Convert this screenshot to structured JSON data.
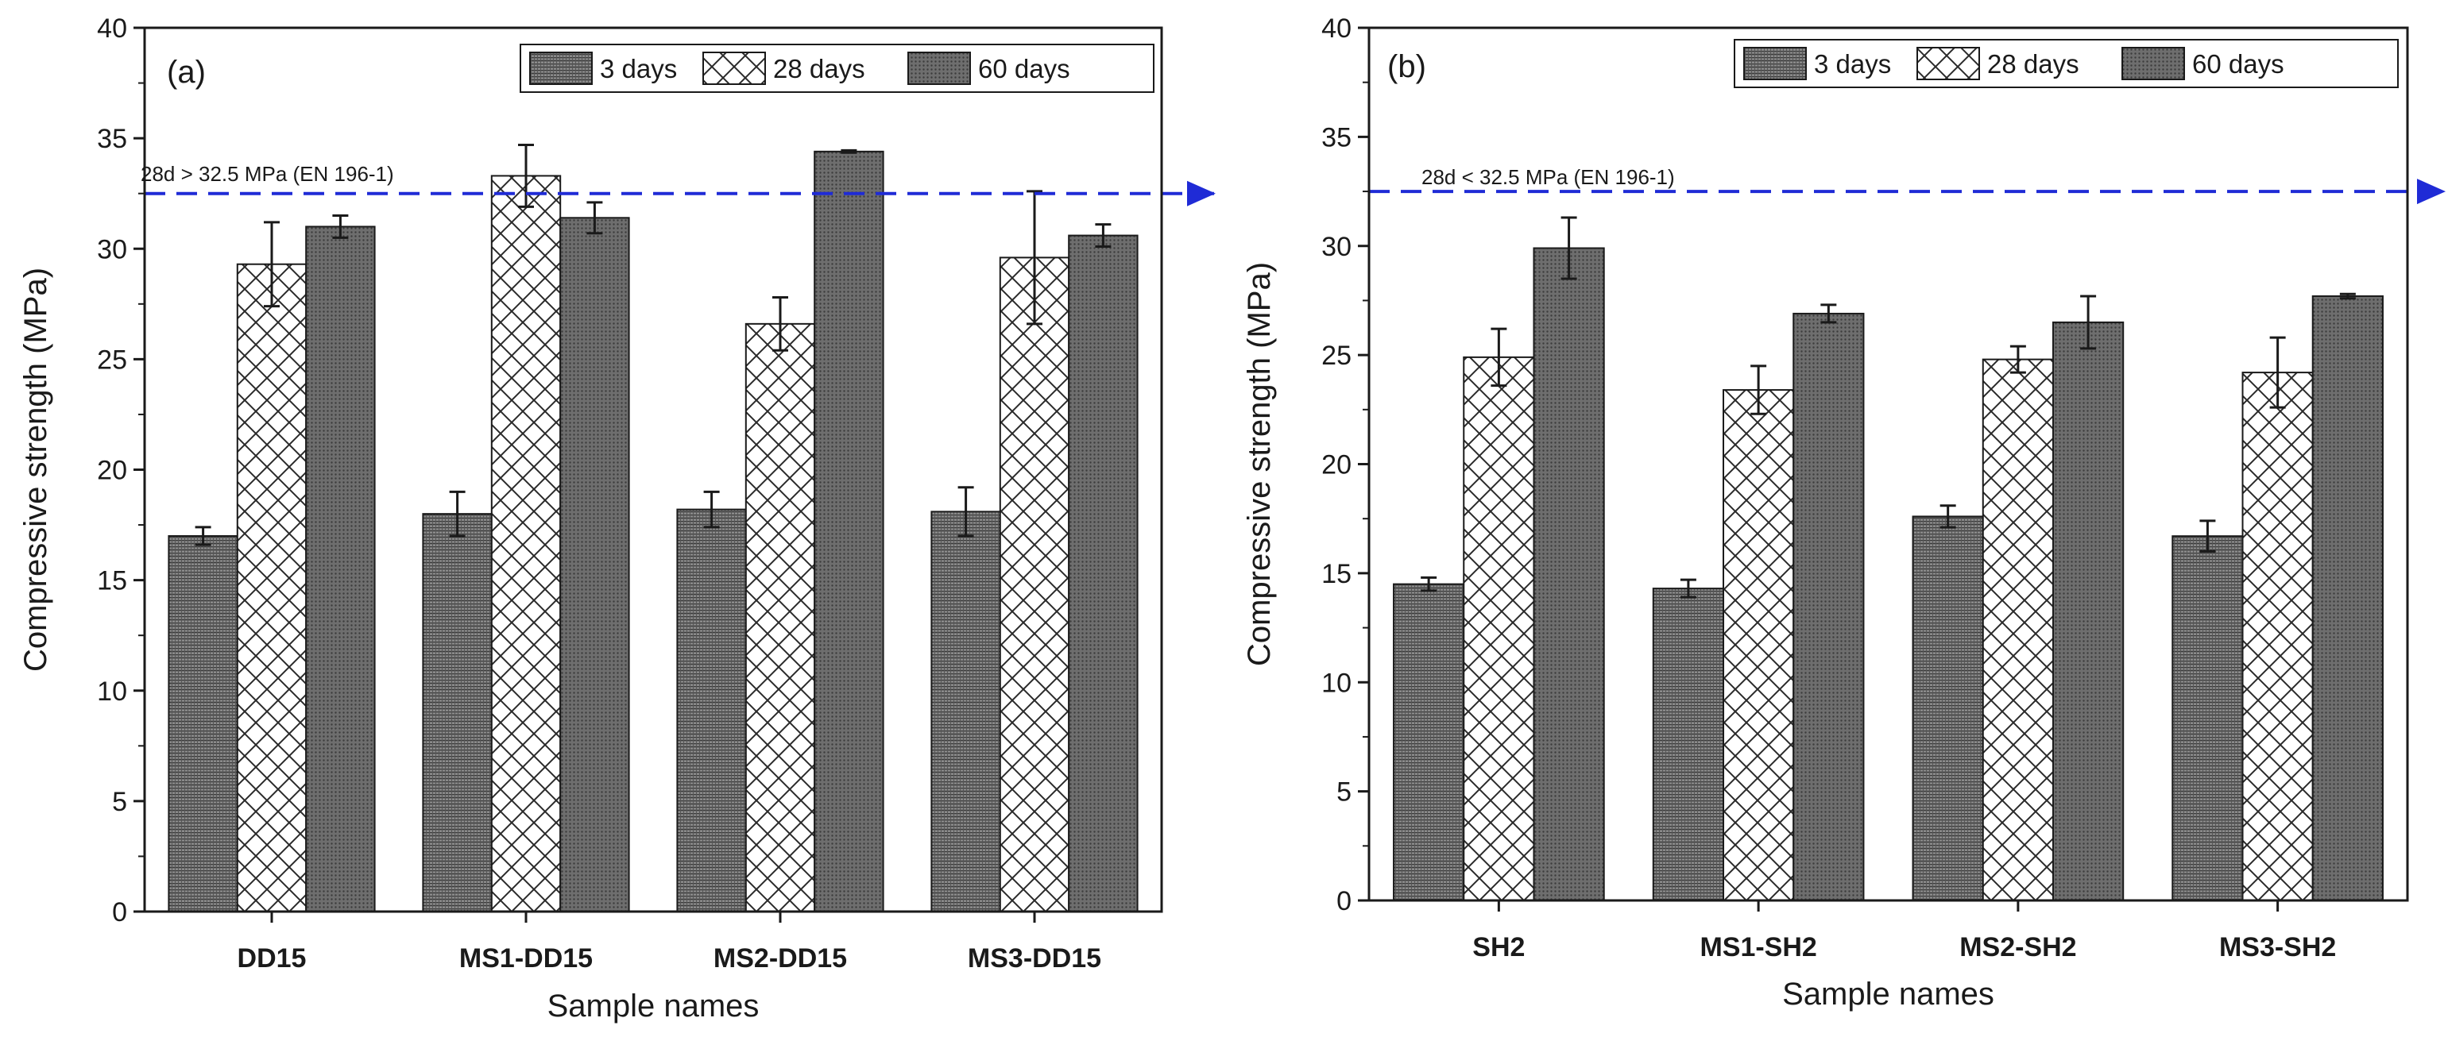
{
  "chart_data": [
    {
      "type": "bar",
      "panel_label": "(a)",
      "categories": [
        "DD15",
        "MS1-DD15",
        "MS2-DD15",
        "MS3-DD15"
      ],
      "series": [
        {
          "name": "3 days",
          "values": [
            17.0,
            18.0,
            18.2,
            18.1
          ],
          "errors": [
            0.4,
            1.0,
            0.8,
            1.1
          ],
          "pattern": "grid"
        },
        {
          "name": "28 days",
          "values": [
            29.3,
            33.3,
            26.6,
            29.6
          ],
          "errors": [
            1.9,
            1.4,
            1.2,
            3.0
          ],
          "pattern": "cross"
        },
        {
          "name": "60 days",
          "values": [
            31.0,
            31.4,
            34.4,
            30.6
          ],
          "errors": [
            0.5,
            0.7,
            0.05,
            0.5
          ],
          "pattern": "dense"
        }
      ],
      "ylim": [
        0,
        40
      ],
      "yticks": [
        0,
        5,
        10,
        15,
        20,
        25,
        30,
        35,
        40
      ],
      "xlabel": "Sample names",
      "ylabel": "Compressive strength (MPa)",
      "legend_position": "top-right",
      "reference_line": {
        "value": 32.5,
        "label": "28d > 32.5 MPa (EN 196-1)",
        "color": "#1f2bd6"
      }
    },
    {
      "type": "bar",
      "panel_label": "(b)",
      "categories": [
        "SH2",
        "MS1-SH2",
        "MS2-SH2",
        "MS3-SH2"
      ],
      "series": [
        {
          "name": "3 days",
          "values": [
            14.5,
            14.3,
            17.6,
            16.7
          ],
          "errors": [
            0.3,
            0.4,
            0.5,
            0.7
          ],
          "pattern": "grid"
        },
        {
          "name": "28 days",
          "values": [
            24.9,
            23.4,
            24.8,
            24.2
          ],
          "errors": [
            1.3,
            1.1,
            0.6,
            1.6
          ],
          "pattern": "cross"
        },
        {
          "name": "60 days",
          "values": [
            29.9,
            26.9,
            26.5,
            27.7
          ],
          "errors": [
            1.4,
            0.4,
            1.2,
            0.1
          ],
          "pattern": "dense"
        }
      ],
      "ylim": [
        0,
        40
      ],
      "yticks": [
        0,
        5,
        10,
        15,
        20,
        25,
        30,
        35,
        40
      ],
      "xlabel": "Sample names",
      "ylabel": "Compressive strength (MPa)",
      "legend_position": "top-right",
      "reference_line": {
        "value": 32.5,
        "label": "28d < 32.5 MPa (EN 196-1)",
        "color": "#1f2bd6"
      }
    }
  ],
  "colors": {
    "ink": "#1a1a1a",
    "bar_fill": "#7d7d7d",
    "bar_fill_light": "#ffffff",
    "reference": "#1f2bd6"
  }
}
